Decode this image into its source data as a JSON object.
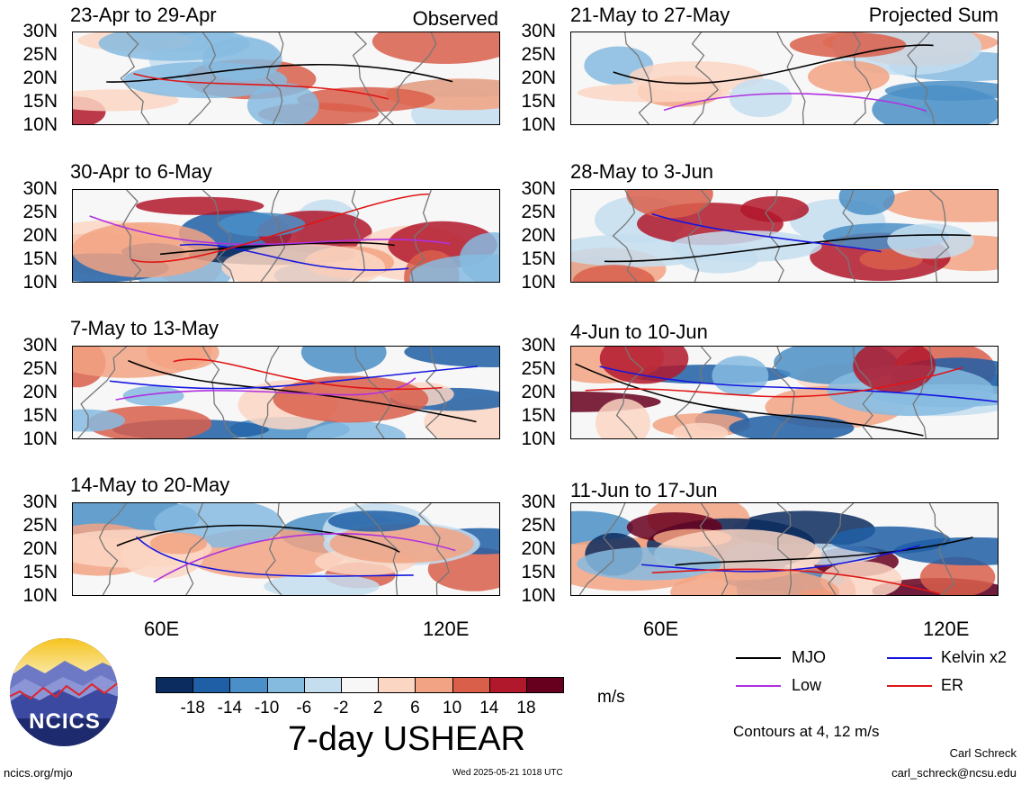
{
  "panels": [
    {
      "title": "23-Apr to 29-Apr",
      "label": "Observed",
      "level": 0.4
    },
    {
      "title": "21-May to 27-May",
      "label": "Projected Sum",
      "level": 0.3
    },
    {
      "title": "30-Apr to 6-May",
      "label": "",
      "level": 0.8
    },
    {
      "title": "28-May to 3-Jun",
      "label": "",
      "level": 0.6
    },
    {
      "title": "7-May to 13-May",
      "label": "",
      "level": 0.4
    },
    {
      "title": "4-Jun to 10-Jun",
      "label": "",
      "level": 0.7
    },
    {
      "title": "14-May to 20-May",
      "label": "",
      "level": 0.5
    },
    {
      "title": "11-Jun to 17-Jun",
      "label": "",
      "level": 1.0
    }
  ],
  "chart_data": {
    "type": "heatmap",
    "title": "7-day USHEAR",
    "units": "m/s",
    "y_ticks": [
      "30N",
      "25N",
      "20N",
      "15N",
      "10N"
    ],
    "x_ticks": [
      "60E",
      "120E"
    ],
    "colorbar": {
      "labels": [
        "-18",
        "-14",
        "-10",
        "-6",
        "-2",
        "2",
        "6",
        "10",
        "14",
        "18"
      ],
      "colors": [
        "#0b2c5e",
        "#1f5fa6",
        "#4a8fc7",
        "#86bbe0",
        "#c4def0",
        "#f7f7f7",
        "#fbd6c3",
        "#f2a383",
        "#d95f4b",
        "#b1182b",
        "#67001f"
      ]
    },
    "contours_note": "Contours at 4, 12 m/s",
    "legend": [
      {
        "name": "MJO",
        "color": "#000000"
      },
      {
        "name": "Kelvin x2",
        "color": "#1515e0"
      },
      {
        "name": "Low",
        "color": "#b030e0"
      },
      {
        "name": "ER",
        "color": "#e01515"
      }
    ]
  },
  "footer": {
    "logo_text": "NCICS",
    "site": "ncics.org/mjo",
    "timestamp": "Wed 2025-05-21 1018 UTC",
    "author": "Carl Schreck",
    "email": "carl_schreck@ncsu.edu"
  }
}
